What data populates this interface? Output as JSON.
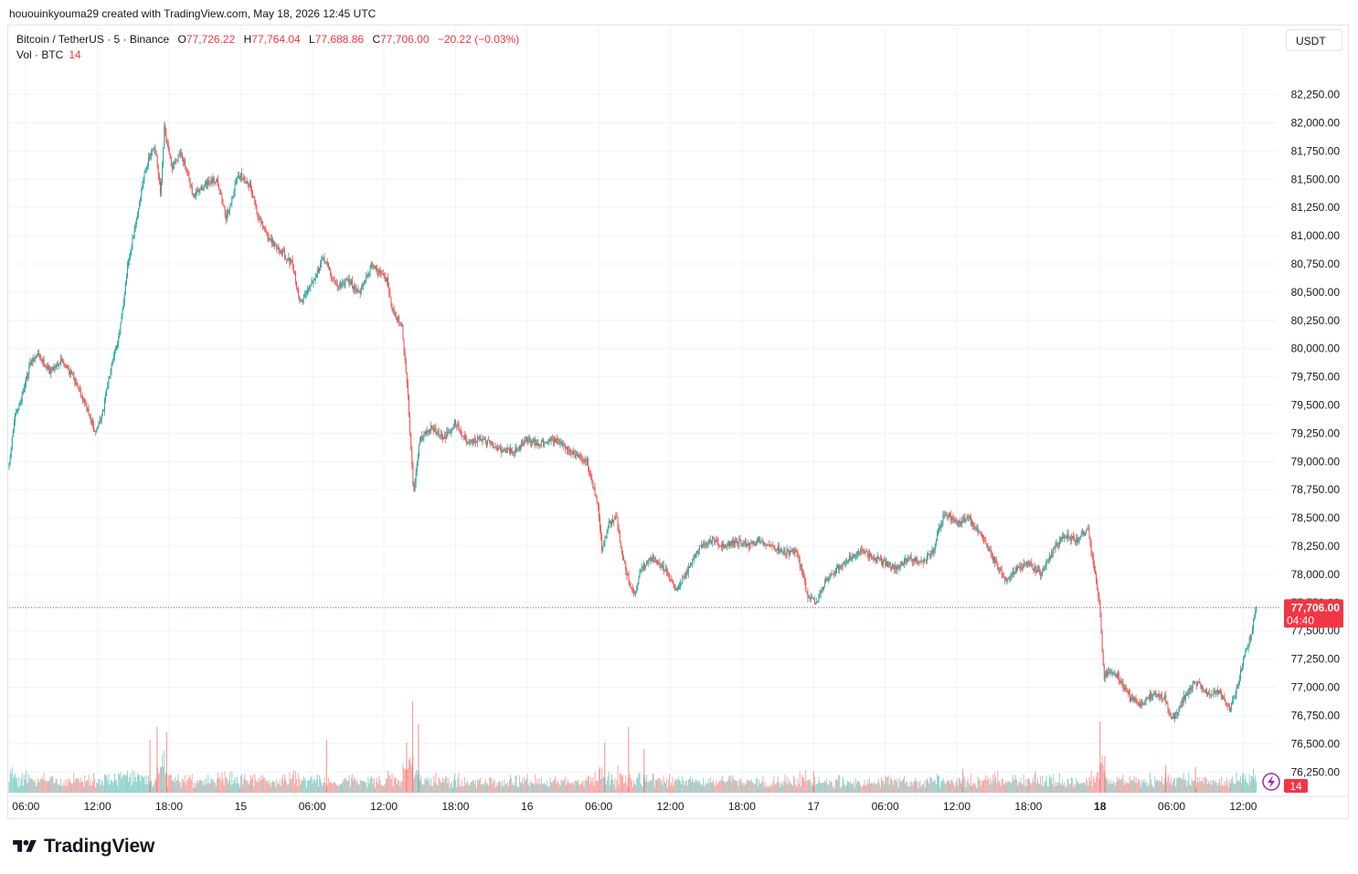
{
  "header": {
    "text": "hououinkyouma29 created with TradingView.com, May 18, 2026 12:45 UTC"
  },
  "legend": {
    "symbol": "Bitcoin / TetherUS · 5 · Binance",
    "open_label": "O",
    "open": "77,726.22",
    "high_label": "H",
    "high": "77,764.04",
    "low_label": "L",
    "low": "77,688.86",
    "close_label": "C",
    "close": "77,706.00",
    "change": "−20.22 (−0.03%)",
    "vol_label": "Vol · BTC",
    "vol_value": "14"
  },
  "currency": "USDT",
  "brand": {
    "name": "TradingView"
  },
  "colors": {
    "up": "#26a69a",
    "down": "#ef5350",
    "price_tag": "#f23645",
    "grid": "#f0f3fa",
    "axis_text": "#131722"
  },
  "chart_data": {
    "type": "candlestick",
    "symbol": "Bitcoin / TetherUS",
    "interval": "5",
    "exchange": "Binance",
    "ylim": [
      76050,
      82400
    ],
    "y_ticks": [
      {
        "value": 82250,
        "label": "82,250.00"
      },
      {
        "value": 82000,
        "label": "82,000.00"
      },
      {
        "value": 81750,
        "label": "81,750.00"
      },
      {
        "value": 81500,
        "label": "81,500.00"
      },
      {
        "value": 81250,
        "label": "81,250.00"
      },
      {
        "value": 81000,
        "label": "81,000.00"
      },
      {
        "value": 80750,
        "label": "80,750.00"
      },
      {
        "value": 80500,
        "label": "80,500.00"
      },
      {
        "value": 80250,
        "label": "80,250.00"
      },
      {
        "value": 80000,
        "label": "80,000.00"
      },
      {
        "value": 79750,
        "label": "79,750.00"
      },
      {
        "value": 79500,
        "label": "79,500.00"
      },
      {
        "value": 79250,
        "label": "79,250.00"
      },
      {
        "value": 79000,
        "label": "79,000.00"
      },
      {
        "value": 78750,
        "label": "78,750.00"
      },
      {
        "value": 78500,
        "label": "78,500.00"
      },
      {
        "value": 78250,
        "label": "78,250.00"
      },
      {
        "value": 78000,
        "label": "78,000.00"
      },
      {
        "value": 77750,
        "label": "77,750.00"
      },
      {
        "value": 77500,
        "label": "77,500.00"
      },
      {
        "value": 77250,
        "label": "77,250.00"
      },
      {
        "value": 77000,
        "label": "77,000.00"
      },
      {
        "value": 76750,
        "label": "76,750.00"
      },
      {
        "value": 76500,
        "label": "76,500.00"
      },
      {
        "value": 76250,
        "label": "76,250.00"
      }
    ],
    "x_range_hours": [
      4.6,
      110.8
    ],
    "x_ticks": [
      {
        "hour": 6,
        "label": "06:00",
        "bold": false
      },
      {
        "hour": 12,
        "label": "12:00",
        "bold": false
      },
      {
        "hour": 18,
        "label": "18:00",
        "bold": false
      },
      {
        "hour": 24,
        "label": "15",
        "bold": false
      },
      {
        "hour": 30,
        "label": "06:00",
        "bold": false
      },
      {
        "hour": 36,
        "label": "12:00",
        "bold": false
      },
      {
        "hour": 42,
        "label": "18:00",
        "bold": false
      },
      {
        "hour": 48,
        "label": "16",
        "bold": false
      },
      {
        "hour": 54,
        "label": "06:00",
        "bold": false
      },
      {
        "hour": 60,
        "label": "12:00",
        "bold": false
      },
      {
        "hour": 66,
        "label": "18:00",
        "bold": false
      },
      {
        "hour": 72,
        "label": "17",
        "bold": false
      },
      {
        "hour": 78,
        "label": "06:00",
        "bold": false
      },
      {
        "hour": 84,
        "label": "12:00",
        "bold": false
      },
      {
        "hour": 90,
        "label": "18:00",
        "bold": false
      },
      {
        "hour": 96,
        "label": "18",
        "bold": true
      },
      {
        "hour": 102,
        "label": "06:00",
        "bold": false
      },
      {
        "hour": 108,
        "label": "12:00",
        "bold": false
      }
    ],
    "price_path": [
      [
        4.6,
        78950
      ],
      [
        5.0,
        79350
      ],
      [
        5.6,
        79550
      ],
      [
        6.3,
        79850
      ],
      [
        7.0,
        79950
      ],
      [
        8.0,
        79800
      ],
      [
        9.0,
        79900
      ],
      [
        10.0,
        79750
      ],
      [
        11.0,
        79500
      ],
      [
        11.8,
        79250
      ],
      [
        12.5,
        79450
      ],
      [
        13.2,
        79900
      ],
      [
        13.8,
        80100
      ],
      [
        14.5,
        80700
      ],
      [
        15.2,
        81100
      ],
      [
        16.0,
        81600
      ],
      [
        16.8,
        81800
      ],
      [
        17.3,
        81350
      ],
      [
        17.6,
        81950
      ],
      [
        18.2,
        81600
      ],
      [
        19.0,
        81750
      ],
      [
        20.0,
        81350
      ],
      [
        21.0,
        81450
      ],
      [
        22.0,
        81500
      ],
      [
        22.8,
        81150
      ],
      [
        23.8,
        81550
      ],
      [
        24.8,
        81450
      ],
      [
        25.5,
        81150
      ],
      [
        26.5,
        80950
      ],
      [
        27.5,
        80850
      ],
      [
        28.3,
        80750
      ],
      [
        29.0,
        80400
      ],
      [
        30.0,
        80600
      ],
      [
        31.0,
        80800
      ],
      [
        32.0,
        80550
      ],
      [
        33.0,
        80600
      ],
      [
        34.0,
        80500
      ],
      [
        35.0,
        80750
      ],
      [
        36.3,
        80600
      ],
      [
        36.7,
        80350
      ],
      [
        37.5,
        80200
      ],
      [
        38.0,
        79600
      ],
      [
        38.5,
        78700
      ],
      [
        39.0,
        79200
      ],
      [
        40.0,
        79300
      ],
      [
        41.0,
        79200
      ],
      [
        42.0,
        79350
      ],
      [
        43.0,
        79150
      ],
      [
        44.0,
        79200
      ],
      [
        45.0,
        79150
      ],
      [
        46.0,
        79100
      ],
      [
        47.0,
        79100
      ],
      [
        48.0,
        79200
      ],
      [
        49.0,
        79150
      ],
      [
        50.0,
        79200
      ],
      [
        51.0,
        79150
      ],
      [
        52.0,
        79050
      ],
      [
        53.0,
        79000
      ],
      [
        53.5,
        78800
      ],
      [
        54.0,
        78550
      ],
      [
        54.3,
        78200
      ],
      [
        54.8,
        78450
      ],
      [
        55.5,
        78500
      ],
      [
        56.0,
        78150
      ],
      [
        56.5,
        77950
      ],
      [
        57.0,
        77800
      ],
      [
        57.5,
        78050
      ],
      [
        58.5,
        78150
      ],
      [
        59.5,
        78050
      ],
      [
        60.5,
        77850
      ],
      [
        61.5,
        78050
      ],
      [
        62.5,
        78250
      ],
      [
        63.5,
        78300
      ],
      [
        64.5,
        78250
      ],
      [
        65.5,
        78300
      ],
      [
        66.5,
        78250
      ],
      [
        67.5,
        78300
      ],
      [
        68.5,
        78250
      ],
      [
        69.5,
        78200
      ],
      [
        70.5,
        78200
      ],
      [
        71.0,
        78050
      ],
      [
        71.5,
        77800
      ],
      [
        72.3,
        77750
      ],
      [
        73.0,
        77950
      ],
      [
        74.0,
        78050
      ],
      [
        75.0,
        78150
      ],
      [
        76.0,
        78200
      ],
      [
        77.0,
        78150
      ],
      [
        78.0,
        78100
      ],
      [
        79.0,
        78050
      ],
      [
        80.0,
        78150
      ],
      [
        81.0,
        78100
      ],
      [
        82.0,
        78200
      ],
      [
        82.5,
        78400
      ],
      [
        83.0,
        78550
      ],
      [
        84.0,
        78450
      ],
      [
        85.0,
        78500
      ],
      [
        86.0,
        78350
      ],
      [
        87.0,
        78150
      ],
      [
        88.0,
        77950
      ],
      [
        89.0,
        78050
      ],
      [
        90.0,
        78100
      ],
      [
        91.0,
        78000
      ],
      [
        92.0,
        78200
      ],
      [
        93.0,
        78350
      ],
      [
        94.0,
        78300
      ],
      [
        95.0,
        78400
      ],
      [
        95.5,
        78050
      ],
      [
        96.0,
        77700
      ],
      [
        96.3,
        77100
      ],
      [
        96.8,
        77150
      ],
      [
        97.5,
        77100
      ],
      [
        98.5,
        76900
      ],
      [
        99.5,
        76850
      ],
      [
        100.5,
        76950
      ],
      [
        101.5,
        76900
      ],
      [
        102.0,
        76700
      ],
      [
        103.0,
        76900
      ],
      [
        104.0,
        77050
      ],
      [
        105.0,
        76950
      ],
      [
        106.0,
        76950
      ],
      [
        106.8,
        76800
      ],
      [
        107.5,
        77000
      ],
      [
        108.0,
        77250
      ],
      [
        108.6,
        77450
      ],
      [
        109.1,
        77706
      ]
    ],
    "last_price": 77706.0,
    "last_price_label": "77,706.00",
    "countdown": "04:40",
    "volume_label": "Vol · BTC",
    "volume_last": "14",
    "volume_spikes": [
      {
        "hour": 17.0,
        "value": 72
      },
      {
        "hour": 17.8,
        "value": 66
      },
      {
        "hour": 16.4,
        "value": 58
      },
      {
        "hour": 38.4,
        "value": 100
      },
      {
        "hour": 38.9,
        "value": 75
      },
      {
        "hour": 37.9,
        "value": 55
      },
      {
        "hour": 31.2,
        "value": 58
      },
      {
        "hour": 54.5,
        "value": 55
      },
      {
        "hour": 56.5,
        "value": 72
      },
      {
        "hour": 57.8,
        "value": 48
      },
      {
        "hour": 96.0,
        "value": 78
      },
      {
        "hour": 96.4,
        "value": 40
      },
      {
        "hour": 84.5,
        "value": 26
      },
      {
        "hour": 101.5,
        "value": 30
      },
      {
        "hour": 104.0,
        "value": 28
      },
      {
        "hour": 72.0,
        "value": 24
      }
    ]
  }
}
